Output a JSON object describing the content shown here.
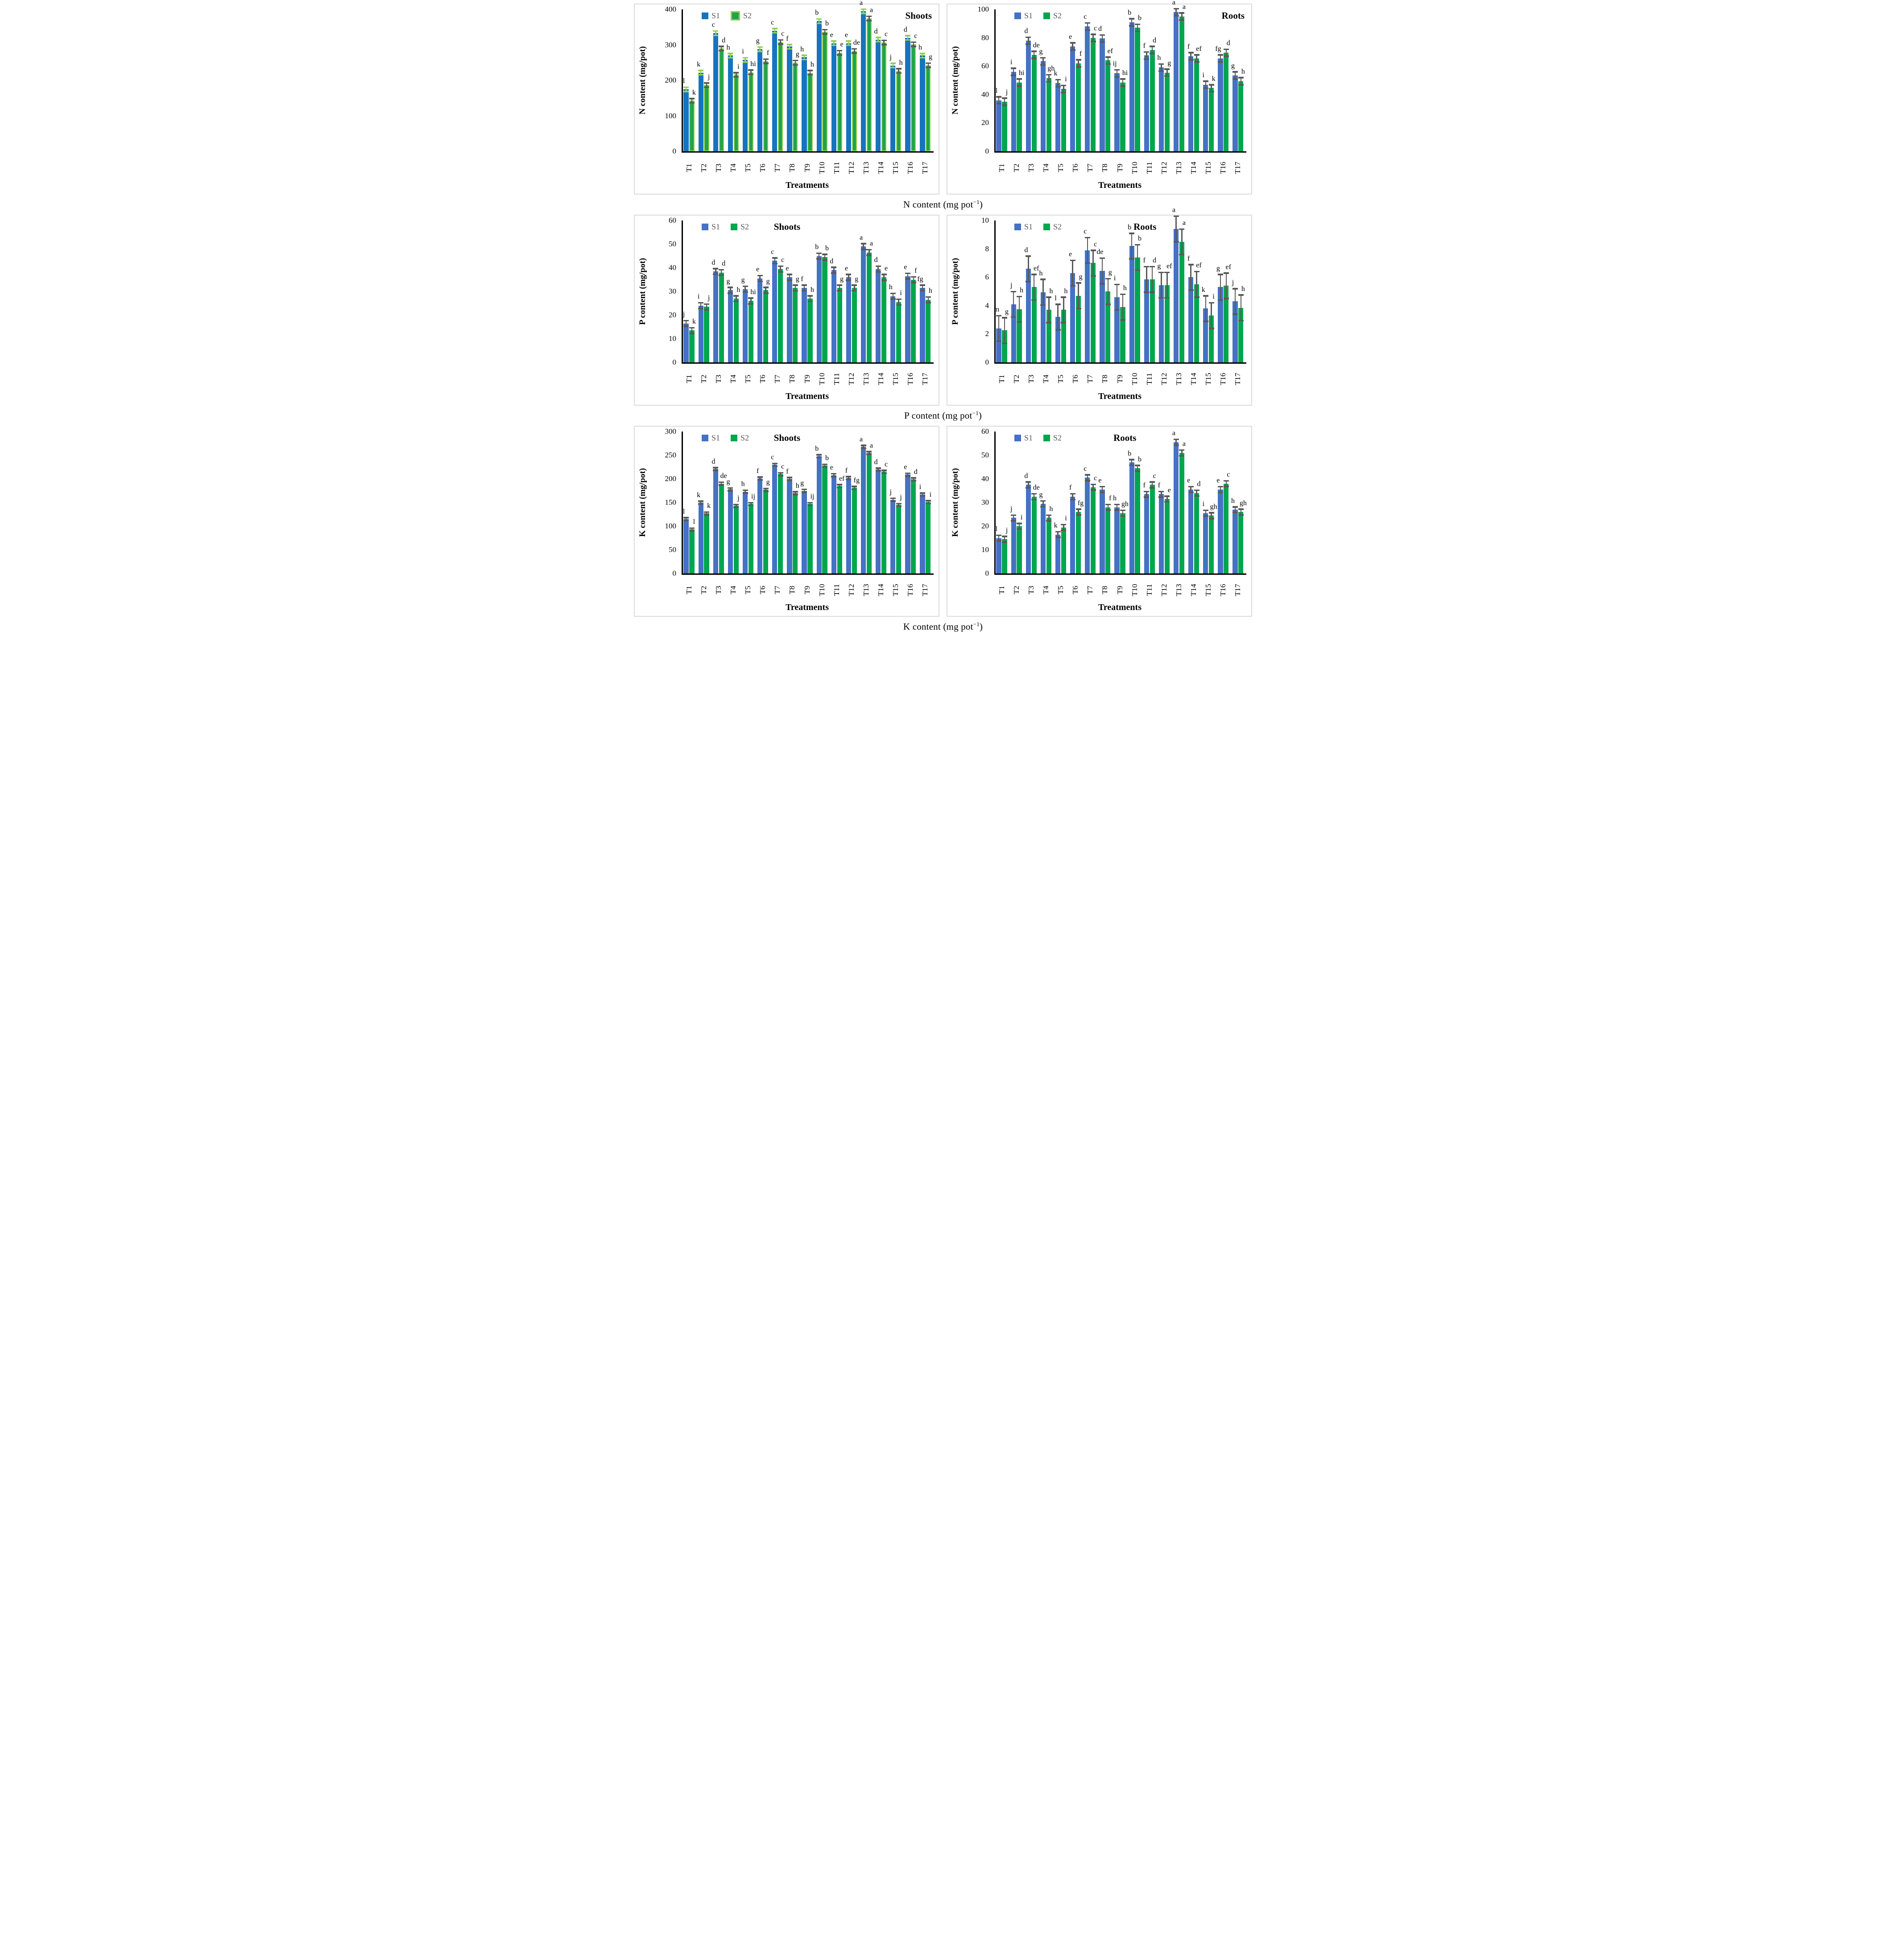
{
  "legend": {
    "s1": "S1",
    "s2": "S2"
  },
  "colors": {
    "s1_bright": "#1674BE",
    "s2_bright": "#21A34C",
    "s2_bright_edge": "#92D050",
    "err_bright_s1": "#92D050",
    "s1": "#4472C4",
    "s2": "#00A64E",
    "err": "#595959",
    "panel_border": "#dcdcdc",
    "legend_text": "#595959",
    "axis": "#000000"
  },
  "captions": [
    {
      "main": "N content (mg pot",
      "sup": "−1",
      "close": ")"
    },
    {
      "main": "P content (mg pot",
      "sup": "−1",
      "close": ")"
    },
    {
      "main": "K content (mg pot",
      "sup": "−1",
      "close": ")"
    }
  ],
  "chart_data": [
    {
      "id": "n-shoots",
      "type": "bar",
      "title": "Shoots",
      "title_align": "right",
      "title_x": 0.97,
      "ylabel": "N content (mg/pot)",
      "xlabel": "Treatments",
      "ymax": 400,
      "ystep": 100,
      "err": 6,
      "style": "bright",
      "grid": false,
      "legend_position": "top-left",
      "categories": [
        "T1",
        "T2",
        "T3",
        "T4",
        "T5",
        "T6",
        "T7",
        "T8",
        "T9",
        "T10",
        "T11",
        "T12",
        "T13",
        "T14",
        "T15",
        "T16",
        "T17"
      ],
      "series": [
        {
          "name": "S1",
          "values": [
            175,
            222,
            333,
            270,
            258,
            288,
            340,
            295,
            265,
            367,
            305,
            305,
            395,
            315,
            242,
            320,
            270
          ],
          "letters": [
            "l",
            "k",
            "c",
            "h",
            "i",
            "g",
            "c",
            "f",
            "h",
            "b",
            "e",
            "e",
            "a",
            "d",
            "j",
            "d",
            "h"
          ]
        },
        {
          "name": "S2",
          "values": [
            143,
            187,
            290,
            216,
            223,
            254,
            308,
            250,
            222,
            337,
            278,
            283,
            375,
            307,
            227,
            302,
            243
          ],
          "letters": [
            "k",
            "j",
            "d",
            "i",
            "hi",
            "f",
            "c",
            "g",
            "h",
            "b",
            "e",
            "de",
            "a",
            "c",
            "h",
            "c",
            "g"
          ]
        }
      ]
    },
    {
      "id": "n-roots",
      "type": "bar",
      "title": "Roots",
      "title_align": "right",
      "title_x": 0.97,
      "ylabel": "N content (mg/pot)",
      "xlabel": "Treatments",
      "ymax": 100,
      "ystep": 20,
      "err": 2.5,
      "style": "plain",
      "grid": false,
      "legend_position": "top-left",
      "categories": [
        "T1",
        "T2",
        "T3",
        "T4",
        "T5",
        "T6",
        "T7",
        "T8",
        "T9",
        "T10",
        "T11",
        "T12",
        "T13",
        "T14",
        "T15",
        "T16",
        "T17"
      ],
      "series": [
        {
          "name": "S1",
          "values": [
            36,
            56,
            78,
            63.5,
            48,
            74,
            88,
            79.5,
            55,
            91,
            67.5,
            59,
            98,
            67,
            47,
            65.5,
            53.5
          ],
          "letters": [
            "l",
            "i",
            "d",
            "g",
            "k",
            "e",
            "c",
            "d",
            "ij",
            "b",
            "f",
            "h",
            "a",
            "f",
            "i",
            "fg",
            "g"
          ]
        },
        {
          "name": "S2",
          "values": [
            35,
            48.5,
            68,
            51.5,
            44,
            62,
            80,
            64,
            48.5,
            87,
            71.5,
            55.5,
            95,
            65.5,
            44.5,
            69.5,
            49.5
          ],
          "letters": [
            "j",
            "hi",
            "de",
            "gh",
            "i",
            "f",
            "c",
            "ef",
            "hi",
            "b",
            "d",
            "g",
            "a",
            "ef",
            "k",
            "d",
            "h"
          ]
        }
      ]
    },
    {
      "id": "p-shoots",
      "type": "bar",
      "title": "Shoots",
      "title_align": "center",
      "title_x": 0.42,
      "ylabel": "P content (mg/pot)",
      "xlabel": "Treatments",
      "ymax": 60,
      "ystep": 10,
      "err": 1.2,
      "style": "plain",
      "grid": false,
      "legend_position": "top-left",
      "categories": [
        "T1",
        "T2",
        "T3",
        "T4",
        "T5",
        "T6",
        "T7",
        "T8",
        "T9",
        "T10",
        "T11",
        "T12",
        "T13",
        "T14",
        "T15",
        "T16",
        "T17"
      ],
      "series": [
        {
          "name": "S1",
          "values": [
            16.5,
            24,
            38.5,
            30.5,
            31,
            35.5,
            43,
            36,
            31.5,
            45,
            39,
            36,
            49,
            39.5,
            28,
            36.5,
            31.5
          ],
          "letters": [
            "j",
            "i",
            "d",
            "g",
            "g",
            "e",
            "c",
            "e",
            "f",
            "b",
            "d",
            "e",
            "a",
            "d",
            "h",
            "e",
            "fg"
          ]
        },
        {
          "name": "S2",
          "values": [
            13.5,
            23.5,
            38,
            27,
            26,
            30.5,
            39.5,
            31.5,
            27,
            44.5,
            31.5,
            31.5,
            46.5,
            36,
            25.5,
            35,
            26.5
          ],
          "letters": [
            "k",
            "j",
            "d",
            "h",
            "hi",
            "g",
            "c",
            "g",
            "h",
            "b",
            "g",
            "g",
            "a",
            "e",
            "i",
            "f",
            "h"
          ]
        }
      ]
    },
    {
      "id": "p-roots",
      "type": "bar",
      "title": "Roots",
      "title_align": "center",
      "title_x": 0.6,
      "ylabel": "P content (mg/pot)",
      "xlabel": "Treatments",
      "ymax": 10,
      "ystep": 2,
      "err": 0.9,
      "style": "plain",
      "grid": false,
      "legend_position": "top-left",
      "categories": [
        "T1",
        "T2",
        "T3",
        "T4",
        "T5",
        "T6",
        "T7",
        "T8",
        "T9",
        "T10",
        "T11",
        "T12",
        "T13",
        "T14",
        "T15",
        "T16",
        "T17"
      ],
      "series": [
        {
          "name": "S1",
          "values": [
            2.4,
            4.1,
            6.6,
            4.95,
            3.2,
            6.3,
            7.9,
            6.45,
            4.6,
            8.2,
            5.85,
            5.45,
            9.4,
            6.0,
            3.8,
            5.3,
            4.3
          ],
          "letters": [
            "m",
            "j",
            "d",
            "h",
            "l",
            "e",
            "c",
            "de",
            "i",
            "b",
            "f",
            "g",
            "a",
            "f",
            "k",
            "g",
            "j"
          ]
        },
        {
          "name": "S2",
          "values": [
            2.25,
            3.75,
            5.3,
            3.7,
            3.7,
            4.7,
            7.0,
            5.0,
            3.9,
            7.4,
            5.85,
            5.45,
            8.5,
            5.5,
            3.3,
            5.4,
            3.85
          ],
          "letters": [
            "g",
            "h",
            "ef",
            "h",
            "h",
            "g",
            "c",
            "g",
            "h",
            "b",
            "d",
            "ef",
            "a",
            "ef",
            "i",
            "ef",
            "h"
          ]
        }
      ]
    },
    {
      "id": "k-shoots",
      "type": "bar",
      "title": "Shoots",
      "title_align": "center",
      "title_x": 0.42,
      "ylabel": "K content (mg/pot)",
      "xlabel": "Treatments",
      "ymax": 300,
      "ystep": 50,
      "err": 3,
      "style": "plain",
      "grid": false,
      "legend_position": "top-left",
      "categories": [
        "T1",
        "T2",
        "T3",
        "T4",
        "T5",
        "T6",
        "T7",
        "T8",
        "T9",
        "T10",
        "T11",
        "T12",
        "T13",
        "T14",
        "T15",
        "T16",
        "T17"
      ],
      "series": [
        {
          "name": "S1",
          "values": [
            115,
            150,
            221,
            178,
            173,
            201,
            230,
            200,
            175,
            248,
            208,
            202,
            268,
            220,
            156,
            209,
            167
          ],
          "letters": [
            "l",
            "k",
            "d",
            "g",
            "h",
            "f",
            "c",
            "f",
            "g",
            "b",
            "e",
            "f",
            "a",
            "d",
            "j",
            "e",
            "i"
          ]
        },
        {
          "name": "S2",
          "values": [
            93,
            127,
            190,
            143,
            147,
            177,
            210,
            170,
            147,
            228,
            185,
            181,
            255,
            215,
            145,
            199,
            151
          ],
          "letters": [
            "l",
            "k",
            "de",
            "j",
            "ij",
            "g",
            "c",
            "h",
            "ij",
            "b",
            "ef",
            "fg",
            "a",
            "c",
            "j",
            "d",
            "i"
          ]
        }
      ]
    },
    {
      "id": "k-roots",
      "type": "bar",
      "title": "Roots",
      "title_align": "center",
      "title_x": 0.52,
      "ylabel": "K content (mg/pot)",
      "xlabel": "Treatments",
      "ymax": 60,
      "ystep": 10,
      "err": 1.2,
      "style": "plain",
      "grid": false,
      "legend_position": "top-left",
      "categories": [
        "T1",
        "T2",
        "T3",
        "T4",
        "T5",
        "T6",
        "T7",
        "T8",
        "T9",
        "T10",
        "T11",
        "T12",
        "T13",
        "T14",
        "T15",
        "T16",
        "T17"
      ],
      "series": [
        {
          "name": "S1",
          "values": [
            15,
            23.5,
            37.5,
            29.5,
            16.5,
            32.5,
            40.5,
            35.5,
            28,
            47,
            33.5,
            33.5,
            55.5,
            35.5,
            25.5,
            35.5,
            27
          ],
          "letters": [
            "l",
            "j",
            "d",
            "g",
            "k",
            "f",
            "c",
            "e",
            "h",
            "b",
            "f",
            "f",
            "a",
            "e",
            "i",
            "e",
            "h"
          ]
        },
        {
          "name": "S2",
          "values": [
            14.5,
            20,
            32.5,
            23.5,
            19.5,
            26,
            36.5,
            28,
            25.5,
            44.5,
            37.5,
            31.5,
            51,
            34,
            24.5,
            38,
            26
          ],
          "letters": [
            "j",
            "i",
            "de",
            "h",
            "i",
            "fg",
            "c",
            "f",
            "gh",
            "b",
            "c",
            "e",
            "a",
            "d",
            "gh",
            "c",
            "gh"
          ]
        }
      ]
    }
  ]
}
